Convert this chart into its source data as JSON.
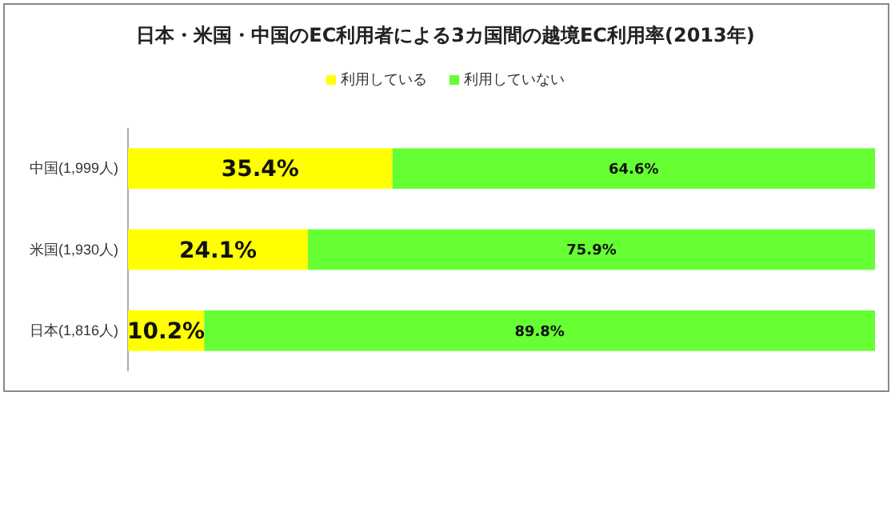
{
  "chart_data": {
    "type": "bar",
    "orientation": "horizontal",
    "stacked": true,
    "title": "日本・米国・中国のEC利用者による3カ国間の越境EC利用率(2013年)",
    "categories": [
      "中国(1,999人)",
      "米国(1,930人)",
      "日本(1,816人)"
    ],
    "xlim": [
      0,
      100
    ],
    "tick_labels": "y",
    "legend": "top",
    "series": [
      {
        "name": "利用している",
        "color": "#ffff00",
        "values": [
          35.4,
          24.1,
          10.2
        ],
        "value_labels": [
          "35.4%",
          "24.1%",
          "10.2%"
        ]
      },
      {
        "name": "利用していない",
        "color": "#66ff33",
        "values": [
          64.6,
          75.9,
          89.8
        ],
        "value_labels": [
          "64.6%",
          "75.9%",
          "89.8%"
        ]
      }
    ]
  }
}
